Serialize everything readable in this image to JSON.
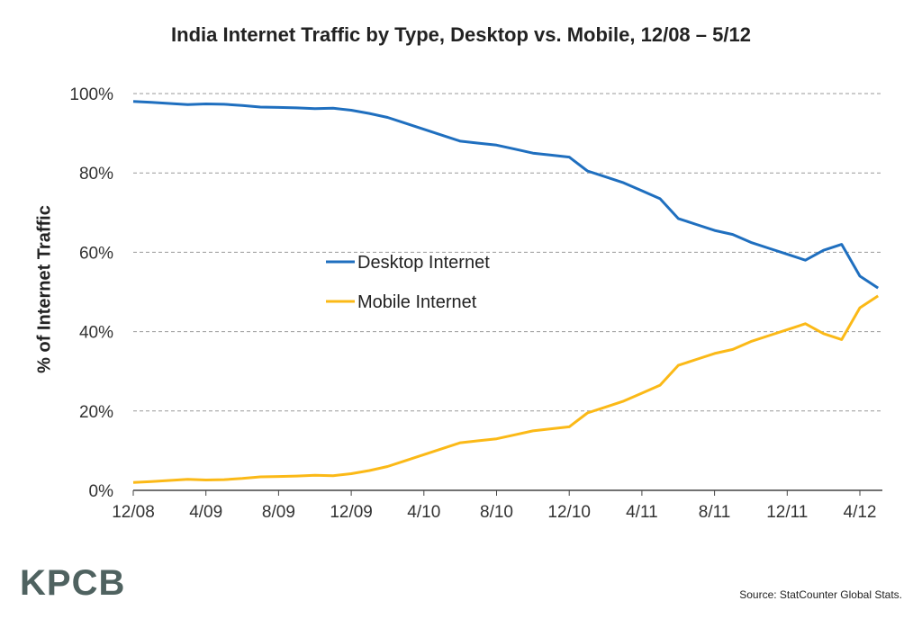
{
  "chart_data": {
    "type": "line",
    "title": "India Internet Traffic by Type, Desktop vs. Mobile, 12/08 – 5/12",
    "ylabel": "% of Internet Traffic",
    "xlabel": "",
    "ylim": [
      0,
      100
    ],
    "yticks": [
      "0%",
      "20%",
      "40%",
      "60%",
      "80%",
      "100%"
    ],
    "xticks": [
      "12/08",
      "4/09",
      "8/09",
      "12/09",
      "4/10",
      "8/10",
      "12/10",
      "4/11",
      "8/11",
      "12/11",
      "4/12"
    ],
    "grid": "horizontal dashed",
    "legend": "center",
    "x": [
      "12/08",
      "1/09",
      "2/09",
      "3/09",
      "4/09",
      "5/09",
      "6/09",
      "7/09",
      "8/09",
      "9/09",
      "10/09",
      "11/09",
      "12/09",
      "1/10",
      "2/10",
      "3/10",
      "4/10",
      "5/10",
      "6/10",
      "7/10",
      "8/10",
      "9/10",
      "10/10",
      "11/10",
      "12/10",
      "1/11",
      "2/11",
      "3/11",
      "4/11",
      "5/11",
      "6/11",
      "7/11",
      "8/11",
      "9/11",
      "10/11",
      "11/11",
      "12/11",
      "1/12",
      "2/12",
      "3/12",
      "4/12",
      "5/12"
    ],
    "series": [
      {
        "name": "Desktop Internet",
        "color": "#1f6fbf",
        "values": [
          98,
          97.8,
          97.5,
          97.2,
          97.4,
          97.3,
          97,
          96.6,
          96.5,
          96.4,
          96.2,
          96.3,
          95.8,
          95,
          94,
          92.5,
          91,
          89.5,
          88,
          87.5,
          87,
          86,
          85,
          84.5,
          84,
          80.5,
          79,
          77.5,
          75.5,
          73.5,
          68.5,
          67,
          65.5,
          64.5,
          62.5,
          61,
          59.5,
          58,
          60.5,
          62,
          54,
          51
        ]
      },
      {
        "name": "Mobile Internet",
        "color": "#fbb917",
        "values": [
          2,
          2.2,
          2.5,
          2.8,
          2.6,
          2.7,
          3,
          3.4,
          3.5,
          3.6,
          3.8,
          3.7,
          4.2,
          5,
          6,
          7.5,
          9,
          10.5,
          12,
          12.5,
          13,
          14,
          15,
          15.5,
          16,
          19.5,
          21,
          22.5,
          24.5,
          26.5,
          31.5,
          33,
          34.5,
          35.5,
          37.5,
          39,
          40.5,
          42,
          39.5,
          38,
          46,
          49
        ]
      }
    ]
  },
  "footer": {
    "logo": "KPCB",
    "source": "Source: StatCounter Global Stats."
  }
}
